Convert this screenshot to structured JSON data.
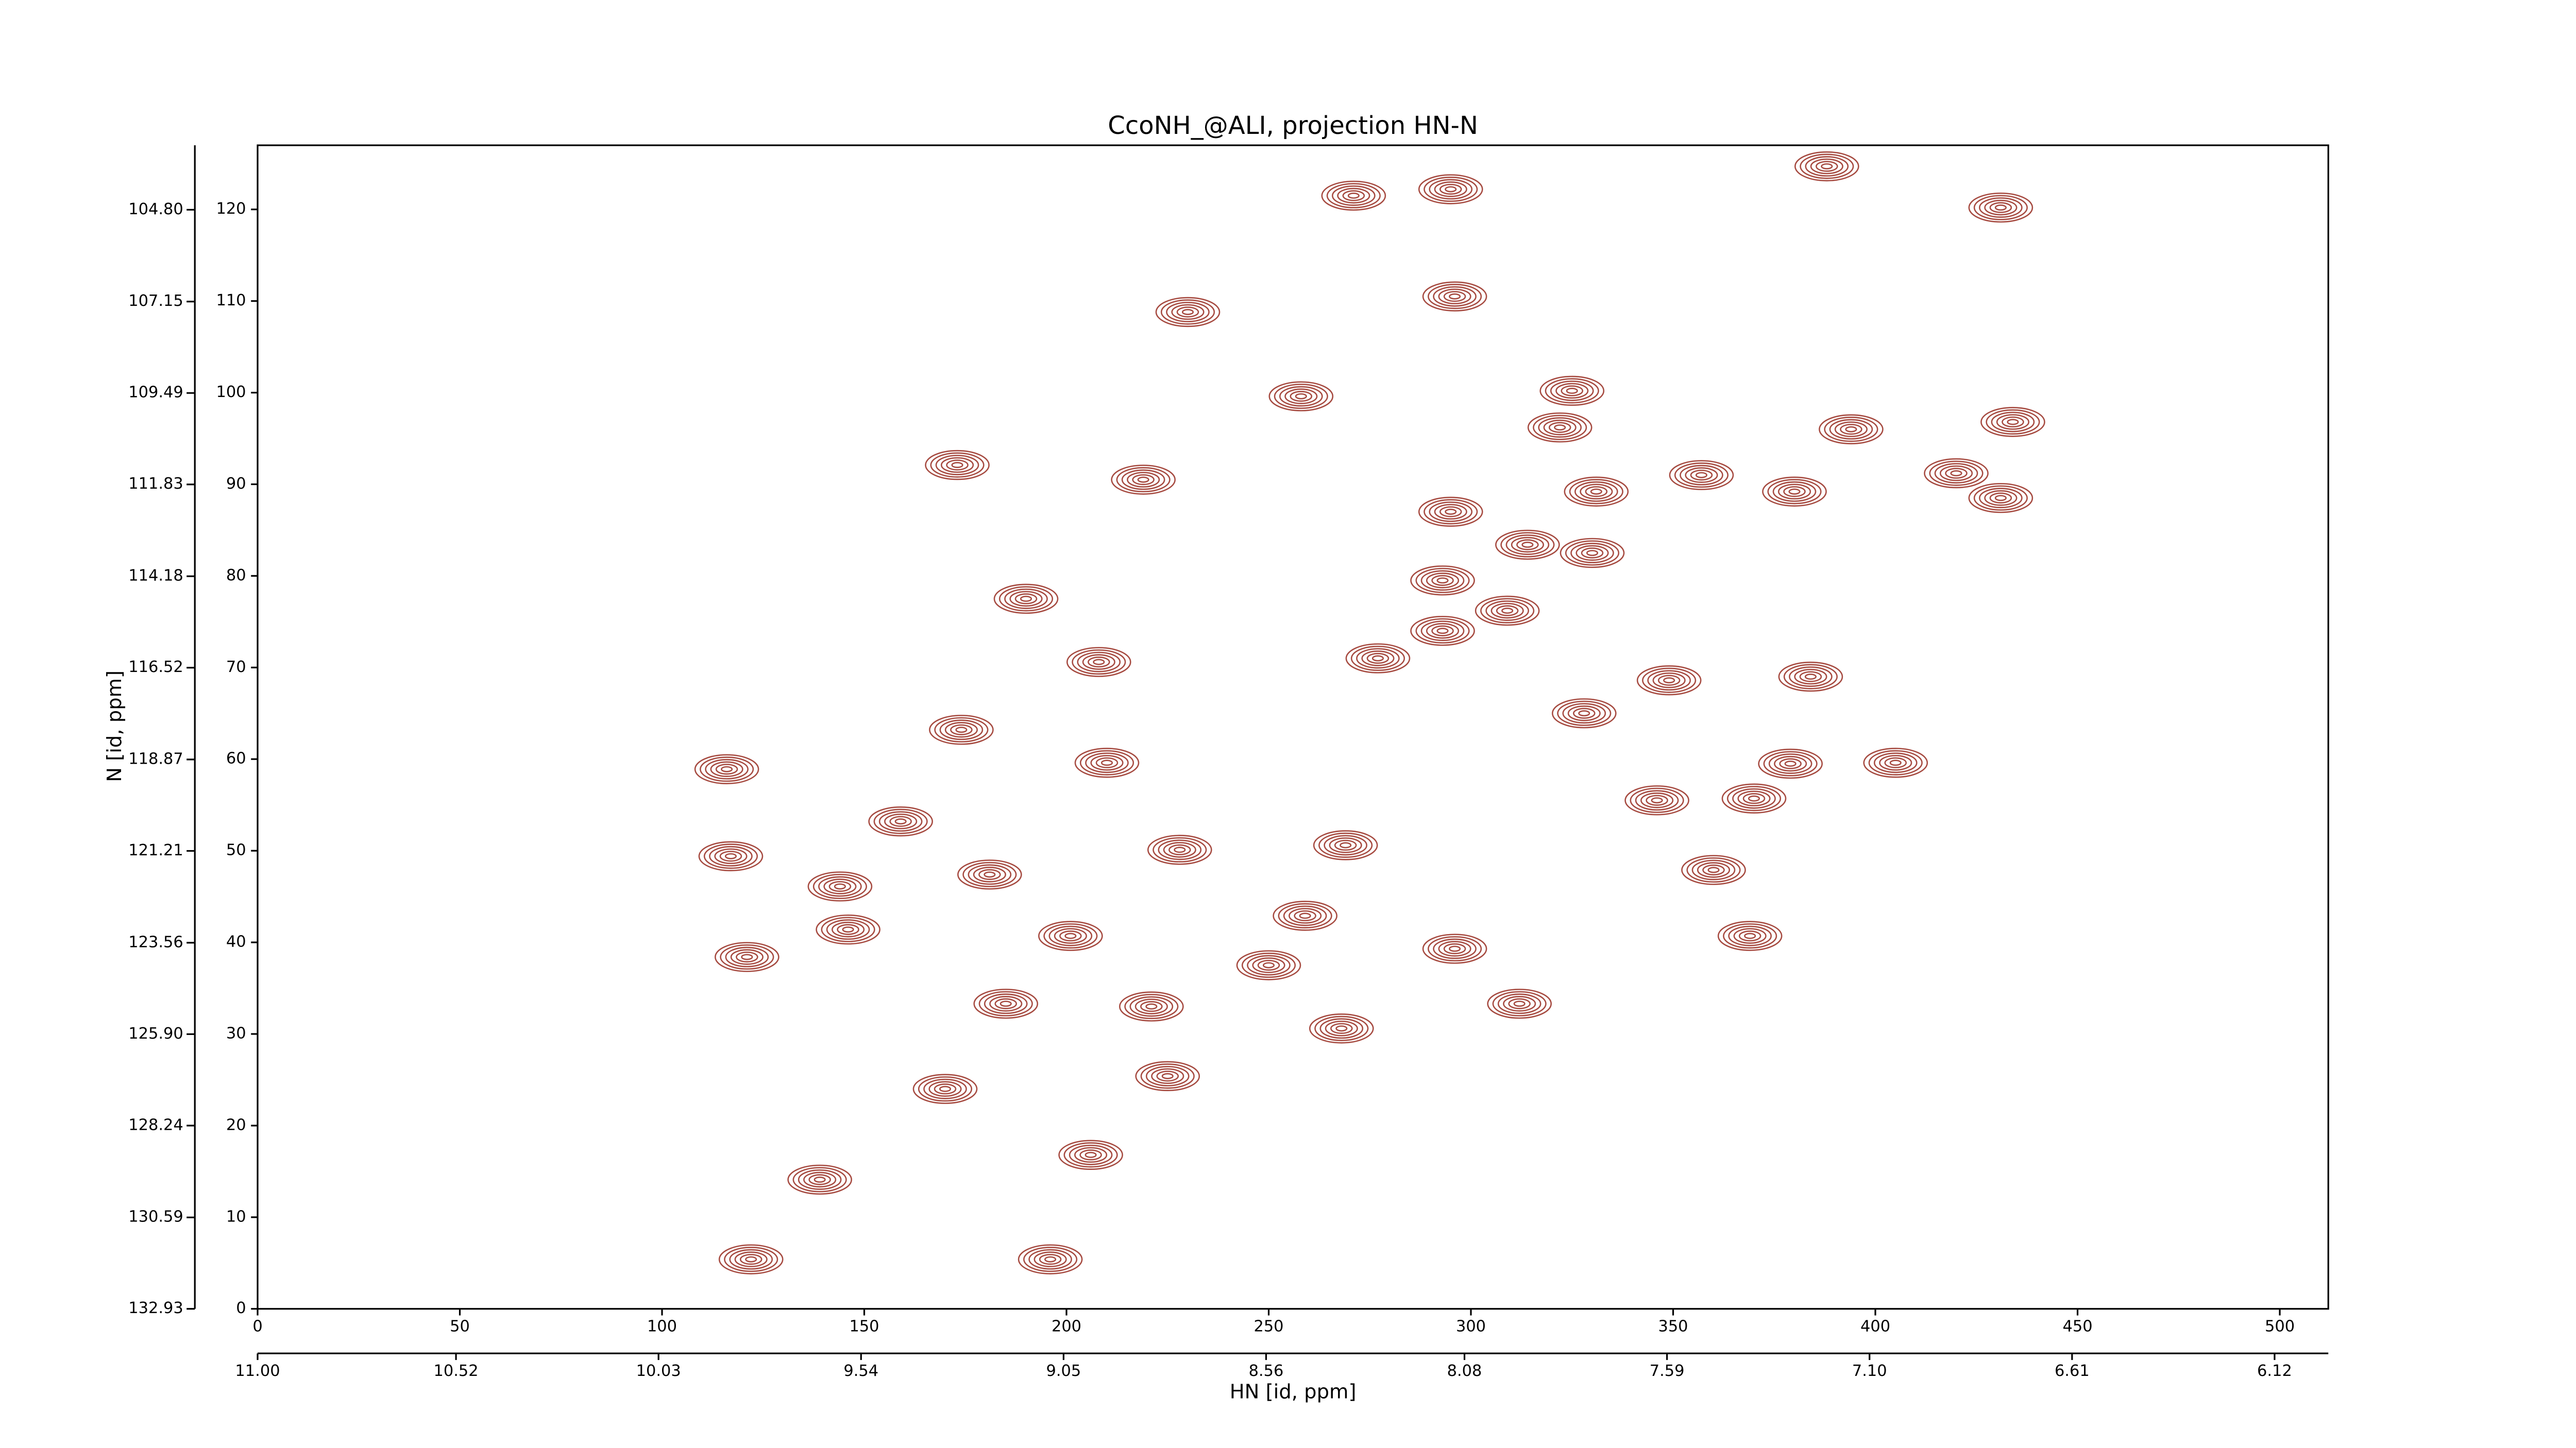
{
  "chart_data": {
    "type": "contour",
    "title": "CcoNH_@ALI, projection HN-N",
    "xlabel": "HN [id, ppm]",
    "ylabel": "N [id, ppm]",
    "color": "#a64a40",
    "xlim": [
      0,
      512
    ],
    "xticks": [
      0,
      50,
      100,
      150,
      200,
      250,
      300,
      350,
      400,
      450,
      500
    ],
    "ylim": [
      0,
      127
    ],
    "yticks": [
      0,
      10,
      20,
      30,
      40,
      50,
      60,
      70,
      80,
      90,
      100,
      110,
      120
    ],
    "x2lim": [
      11.0,
      5.99
    ],
    "x2ticks": [
      {
        "value": 11.0,
        "label": "11.00"
      },
      {
        "value": 10.52,
        "label": "10.52"
      },
      {
        "value": 10.03,
        "label": "10.03"
      },
      {
        "value": 9.54,
        "label": "9.54"
      },
      {
        "value": 9.05,
        "label": "9.05"
      },
      {
        "value": 8.56,
        "label": "8.56"
      },
      {
        "value": 8.08,
        "label": "8.08"
      },
      {
        "value": 7.59,
        "label": "7.59"
      },
      {
        "value": 7.1,
        "label": "7.10"
      },
      {
        "value": 6.61,
        "label": "6.61"
      },
      {
        "value": 6.12,
        "label": "6.12"
      }
    ],
    "y2lim": [
      132.93,
      103.15
    ],
    "y2ticks": [
      {
        "value": 132.93,
        "label": "132.93"
      },
      {
        "value": 130.59,
        "label": "130.59"
      },
      {
        "value": 128.24,
        "label": "128.24"
      },
      {
        "value": 125.9,
        "label": "125.90"
      },
      {
        "value": 123.56,
        "label": "123.56"
      },
      {
        "value": 121.21,
        "label": "121.21"
      },
      {
        "value": 118.87,
        "label": "118.87"
      },
      {
        "value": 116.52,
        "label": "116.52"
      },
      {
        "value": 114.18,
        "label": "114.18"
      },
      {
        "value": 111.83,
        "label": "111.83"
      },
      {
        "value": 109.49,
        "label": "109.49"
      },
      {
        "value": 107.15,
        "label": "107.15"
      },
      {
        "value": 104.8,
        "label": "104.80"
      }
    ],
    "peaks": {
      "x": [
        271,
        295,
        388,
        431,
        230,
        296,
        258,
        325,
        322,
        394,
        434,
        173,
        219,
        331,
        357,
        380,
        420,
        431,
        295,
        314,
        330,
        190,
        293,
        309,
        293,
        208,
        277,
        349,
        384,
        174,
        328,
        116,
        210,
        405,
        379,
        346,
        370,
        159,
        117,
        144,
        360,
        228,
        269,
        181,
        259,
        201,
        369,
        121,
        146,
        296,
        250,
        185,
        221,
        312,
        268,
        225,
        170,
        206,
        139,
        122,
        196
      ],
      "y": [
        121.5,
        122.2,
        124.7,
        120.2,
        108.8,
        110.5,
        99.6,
        100.2,
        96.2,
        96,
        96.8,
        92.1,
        90.5,
        89.2,
        91,
        89.2,
        91.2,
        88.5,
        87,
        83.4,
        82.5,
        77.5,
        79.5,
        76.2,
        74,
        70.6,
        71,
        68.6,
        69,
        63.2,
        65,
        58.9,
        59.6,
        59.6,
        59.5,
        55.5,
        55.7,
        53.2,
        49.4,
        46.1,
        47.9,
        50.1,
        50.6,
        47.4,
        42.9,
        40.7,
        40.7,
        38.4,
        41.4,
        39.3,
        37.5,
        33.3,
        33,
        33.3,
        30.6,
        25.4,
        24,
        16.8,
        14.1,
        5.4,
        5.4
      ]
    }
  }
}
